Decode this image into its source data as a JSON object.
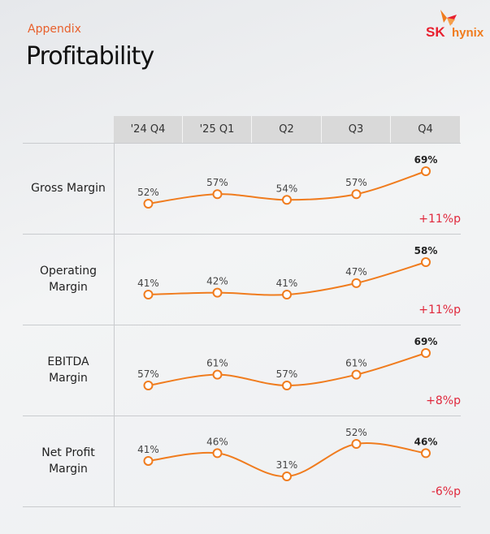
{
  "header": {
    "section": "Appendix",
    "title": "Profitability",
    "logo": "SK hynix"
  },
  "colors": {
    "line": "#f07c1e",
    "delta": "#e0283c",
    "accent": "#e8602c"
  },
  "chart_data": {
    "type": "line",
    "title": "Profitability",
    "categories": [
      "'24 Q4",
      "'25 Q1",
      "Q2",
      "Q3",
      "Q4"
    ],
    "series": [
      {
        "name": "Gross Margin",
        "values": [
          52,
          57,
          54,
          57,
          69
        ],
        "labels": [
          "52%",
          "57%",
          "54%",
          "57%",
          "69%"
        ],
        "delta": "+11%p"
      },
      {
        "name": "Operating Margin",
        "values": [
          41,
          42,
          41,
          47,
          58
        ],
        "labels": [
          "41%",
          "42%",
          "41%",
          "47%",
          "58%"
        ],
        "delta": "+11%p"
      },
      {
        "name": "EBITDA Margin",
        "values": [
          57,
          61,
          57,
          61,
          69
        ],
        "labels": [
          "57%",
          "61%",
          "57%",
          "61%",
          "69%"
        ],
        "delta": "+8%p"
      },
      {
        "name": "Net Profit Margin",
        "values": [
          41,
          46,
          31,
          52,
          46
        ],
        "labels": [
          "41%",
          "46%",
          "31%",
          "52%",
          "46%"
        ],
        "delta": "-6%p"
      }
    ],
    "row_labels": [
      [
        "Gross Margin"
      ],
      [
        "Operating",
        "Margin"
      ],
      [
        "EBITDA",
        "Margin"
      ],
      [
        "Net Profit",
        "Margin"
      ]
    ],
    "unit": "%"
  }
}
